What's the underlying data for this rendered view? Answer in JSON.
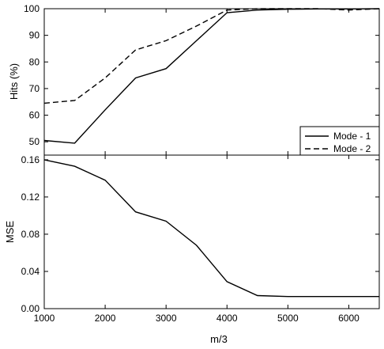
{
  "chart_data": [
    {
      "type": "line",
      "title": "",
      "xlabel": "",
      "ylabel": "Hits (%)",
      "xlim": [
        1000,
        6500
      ],
      "ylim": [
        45,
        100
      ],
      "yticks": [
        50,
        60,
        70,
        80,
        90,
        100
      ],
      "grid": false,
      "legend_position": "bottom-right",
      "series": [
        {
          "name": "Mode - 1",
          "style": "solid",
          "color": "#000000",
          "x": [
            1000,
            1500,
            2000,
            2500,
            3000,
            3500,
            4000,
            4500,
            5000,
            5500,
            6000,
            6500
          ],
          "y": [
            50.5,
            49.5,
            62,
            74,
            77.5,
            88,
            98.5,
            99.5,
            99.8,
            99.9,
            99.9,
            100
          ]
        },
        {
          "name": "Mode - 2",
          "style": "dashed",
          "color": "#000000",
          "x": [
            1000,
            1500,
            2000,
            2500,
            3000,
            3500,
            4000,
            4500,
            5000,
            5500,
            6000,
            6500
          ],
          "y": [
            64.5,
            65.5,
            74,
            84.5,
            88,
            93.5,
            99.5,
            100,
            100,
            100,
            99.5,
            100
          ]
        }
      ]
    },
    {
      "type": "line",
      "title": "",
      "xlabel": "m/3",
      "ylabel": "MSE",
      "xlim": [
        1000,
        6500
      ],
      "ylim": [
        0,
        0.165
      ],
      "xticks": [
        1000,
        2000,
        3000,
        4000,
        5000,
        6000
      ],
      "yticks": [
        0,
        0.04,
        0.08,
        0.12,
        0.16
      ],
      "ytick_labels": [
        "0.00",
        "0.04",
        "0.08",
        "0.12",
        "0.16"
      ],
      "grid": false,
      "series": [
        {
          "style": "solid",
          "color": "#000000",
          "x": [
            1000,
            1500,
            2000,
            2500,
            3000,
            3500,
            4000,
            4500,
            5000,
            5500,
            6000,
            6500
          ],
          "y": [
            0.16,
            0.153,
            0.138,
            0.104,
            0.094,
            0.068,
            0.029,
            0.014,
            0.013,
            0.013,
            0.013,
            0.013
          ]
        }
      ]
    }
  ]
}
